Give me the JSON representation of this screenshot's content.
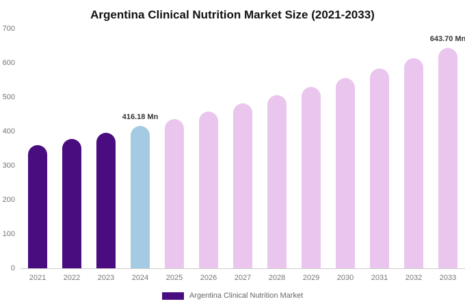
{
  "chart_data": {
    "type": "bar",
    "title": "Argentina Clinical Nutrition Market Size (2021-2033)",
    "categories": [
      "2021",
      "2022",
      "2023",
      "2024",
      "2025",
      "2026",
      "2027",
      "2028",
      "2029",
      "2030",
      "2031",
      "2032",
      "2033"
    ],
    "values": [
      359.9,
      377.8,
      396.5,
      416.18,
      436.8,
      458.5,
      481.3,
      505.2,
      530.2,
      556.6,
      584.2,
      613.2,
      643.7
    ],
    "unit": "Mn",
    "ylim": [
      0,
      700
    ],
    "yticks": [
      0,
      100,
      200,
      300,
      400,
      500,
      600,
      700
    ],
    "grid": false,
    "legend": "Argentina Clinical Nutrition Market",
    "legend_position": "bottom",
    "annotations": [
      {
        "index": 3,
        "text": "416.18 Mn"
      },
      {
        "index": 12,
        "text": "643.70 Mn"
      }
    ],
    "bar_colors": [
      "#4a0d7f",
      "#4a0d7f",
      "#4a0d7f",
      "#a4cbe3",
      "#eac6ee",
      "#eac6ee",
      "#eac6ee",
      "#eac6ee",
      "#eac6ee",
      "#eac6ee",
      "#eac6ee",
      "#eac6ee",
      "#eac6ee"
    ],
    "colors": {
      "historic": "#4a0d7f",
      "highlight": "#a4cbe3",
      "forecast": "#eac6ee",
      "legend_swatch": "#4a0d7f",
      "axis_line": "#cccccc",
      "tick_text": "#757575",
      "annotation_text": "#333333"
    }
  }
}
